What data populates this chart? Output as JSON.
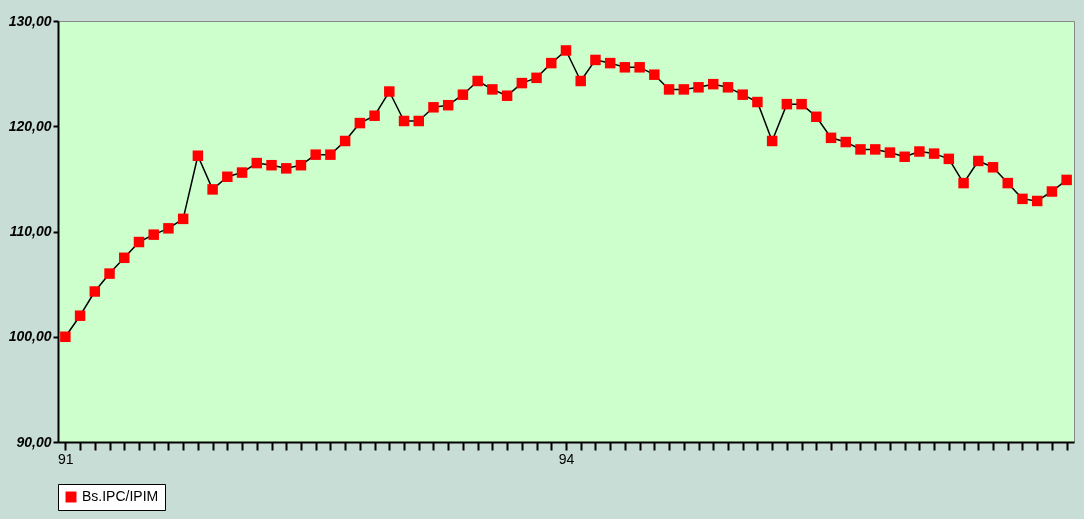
{
  "chart_data": {
    "type": "line",
    "categories": [
      "91",
      null,
      null,
      null,
      null,
      null,
      null,
      null,
      null,
      null,
      null,
      null,
      null,
      null,
      null,
      null,
      null,
      null,
      null,
      null,
      null,
      null,
      null,
      null,
      null,
      null,
      null,
      null,
      null,
      null,
      null,
      null,
      null,
      null,
      "94",
      null,
      null,
      null,
      null,
      null,
      null,
      null,
      null,
      null,
      null,
      null,
      null,
      null,
      null,
      null,
      null,
      null,
      null,
      null,
      null,
      null,
      null,
      null,
      null,
      null,
      null,
      null,
      null,
      null,
      null,
      null,
      null,
      null,
      null
    ],
    "series": [
      {
        "name": "Bs.IPC/IPIM",
        "color": "#ff0000",
        "values": [
          100.0,
          102.0,
          104.3,
          106.0,
          107.5,
          109.0,
          109.7,
          110.3,
          111.2,
          117.2,
          114.0,
          115.2,
          115.6,
          116.5,
          116.3,
          116.0,
          116.3,
          117.3,
          117.3,
          118.6,
          120.3,
          121.0,
          123.3,
          120.5,
          120.5,
          121.8,
          122.0,
          123.0,
          124.3,
          123.5,
          122.9,
          124.1,
          124.6,
          126.0,
          127.2,
          124.3,
          126.3,
          126.0,
          125.6,
          125.6,
          124.9,
          123.5,
          123.5,
          123.7,
          124.0,
          123.7,
          123.0,
          122.3,
          118.6,
          122.1,
          122.1,
          120.9,
          118.9,
          118.5,
          117.8,
          117.8,
          117.5,
          117.1,
          117.6,
          117.4,
          116.9,
          114.6,
          116.7,
          116.1,
          114.6,
          113.1,
          112.9,
          113.8,
          114.9
        ]
      }
    ],
    "ylim": [
      90,
      130
    ],
    "yticks": [
      {
        "value": 90,
        "label": "90,00"
      },
      {
        "value": 100,
        "label": "100,00"
      },
      {
        "value": 110,
        "label": "110,00"
      },
      {
        "value": 120,
        "label": "120,00"
      },
      {
        "value": 130,
        "label": "130,00"
      }
    ],
    "marker": "square",
    "line_style": "solid",
    "grid": false,
    "legend": "bottom"
  }
}
